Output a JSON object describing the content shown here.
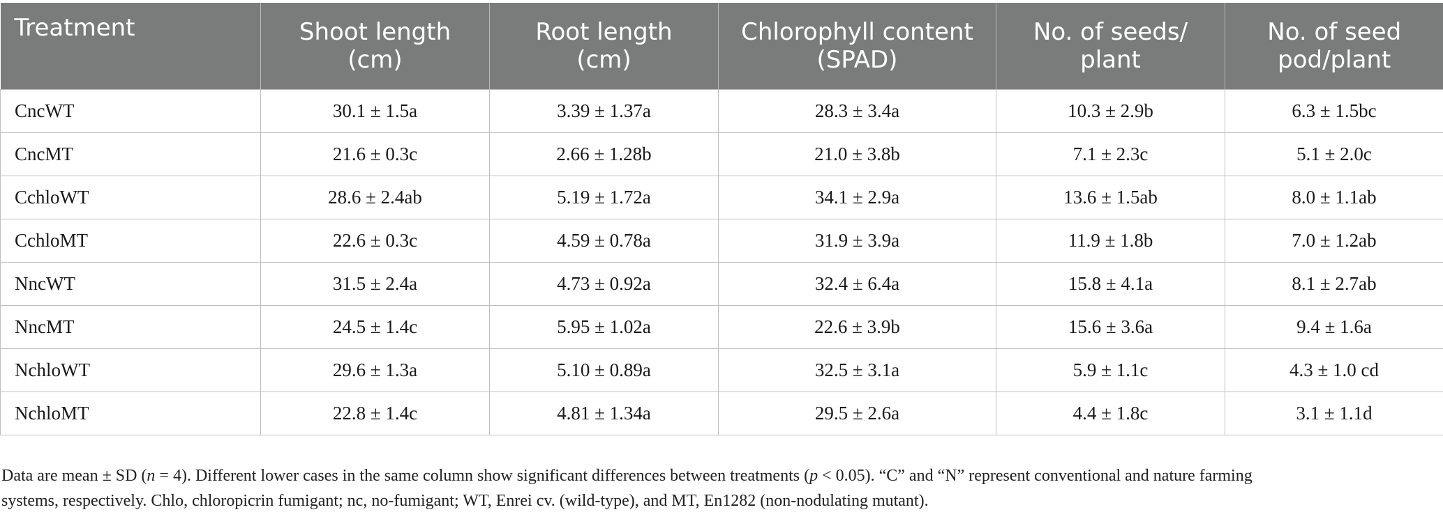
{
  "table": {
    "headers": [
      [
        "Treatment"
      ],
      [
        "Shoot length",
        "(cm)"
      ],
      [
        "Root length",
        "(cm)"
      ],
      [
        "Chlorophyll content",
        "(SPAD)"
      ],
      [
        "No. of seeds/",
        "plant"
      ],
      [
        "No. of seed",
        "pod/plant"
      ]
    ],
    "rows": [
      [
        "CncWT",
        "30.1 ± 1.5a",
        "3.39 ± 1.37a",
        "28.3 ± 3.4a",
        "10.3 ± 2.9b",
        "6.3 ± 1.5bc"
      ],
      [
        "CncMT",
        "21.6 ± 0.3c",
        "2.66 ± 1.28b",
        "21.0 ± 3.8b",
        "7.1 ± 2.3c",
        "5.1 ± 2.0c"
      ],
      [
        "CchloWT",
        "28.6 ± 2.4ab",
        "5.19 ± 1.72a",
        "34.1 ± 2.9a",
        "13.6 ± 1.5ab",
        "8.0 ± 1.1ab"
      ],
      [
        "CchloMT",
        "22.6 ± 0.3c",
        "4.59 ± 0.78a",
        "31.9 ± 3.9a",
        "11.9 ± 1.8b",
        "7.0 ± 1.2ab"
      ],
      [
        "NncWT",
        "31.5 ± 2.4a",
        "4.73 ± 0.92a",
        "32.4 ± 6.4a",
        "15.8 ± 4.1a",
        "8.1 ± 2.7ab"
      ],
      [
        "NncMT",
        "24.5 ± 1.4c",
        "5.95 ± 1.02a",
        "22.6 ± 3.9b",
        "15.6 ± 3.6a",
        "9.4 ± 1.6a"
      ],
      [
        "NchloWT",
        "29.6 ± 1.3a",
        "5.10 ± 0.89a",
        "32.5 ± 3.1a",
        "5.9 ± 1.1c",
        "4.3 ± 1.0 cd"
      ],
      [
        "NchloMT",
        "22.8 ± 1.4c",
        "4.81 ± 1.34a",
        "29.5 ± 2.6a",
        "4.4 ± 1.8c",
        "3.1 ± 1.1d"
      ]
    ]
  },
  "footnote": {
    "line1_a": "Data are mean ± SD (",
    "line1_n": "n",
    "line1_b": " = 4). Different lower cases in the same column show significant differences between treatments (",
    "line1_p": "p",
    "line1_c": " < 0.05). “C” and “N” represent conventional and nature farming",
    "line2": "systems, respectively. Chlo, chloropicrin fumigant; nc, no-fumigant; WT, Enrei cv. (wild-type), and MT, En1282 (non-nodulating mutant)."
  },
  "colors": {
    "header_bg": "#7a7c7b",
    "header_text": "#ffffff",
    "grid": "#bfbfbf"
  }
}
